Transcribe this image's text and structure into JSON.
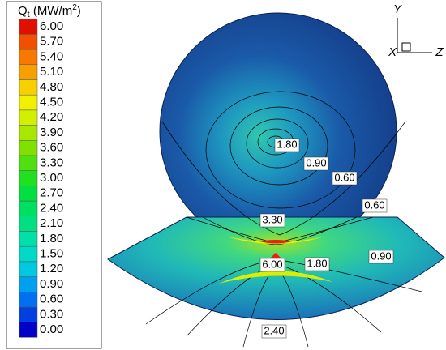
{
  "chart_data": {
    "type": "contour",
    "title": [
      "Q",
      "t",
      " (MW/m",
      "2",
      ")"
    ],
    "colorbar": {
      "ticks": [
        {
          "value": 0,
          "label": "0.00"
        },
        {
          "value": 0.3,
          "label": "0.30"
        },
        {
          "value": 0.6,
          "label": "0.60"
        },
        {
          "value": 0.9,
          "label": "0.90"
        },
        {
          "value": 1.2,
          "label": "1.20"
        },
        {
          "value": 1.5,
          "label": "1.50"
        },
        {
          "value": 1.8,
          "label": "1.80"
        },
        {
          "value": 2.1,
          "label": "2.10"
        },
        {
          "value": 2.4,
          "label": "2.40"
        },
        {
          "value": 2.7,
          "label": "2.70"
        },
        {
          "value": 3,
          "label": "3.00"
        },
        {
          "value": 3.3,
          "label": "3.30"
        },
        {
          "value": 3.6,
          "label": "3.60"
        },
        {
          "value": 3.9,
          "label": "3.90"
        },
        {
          "value": 4.2,
          "label": "4.20"
        },
        {
          "value": 4.5,
          "label": "4.50"
        },
        {
          "value": 4.8,
          "label": "4.80"
        },
        {
          "value": 5.1,
          "label": "5.10"
        },
        {
          "value": 5.4,
          "label": "5.40"
        },
        {
          "value": 5.7,
          "label": "5.70"
        },
        {
          "value": 6,
          "label": "6.00"
        }
      ],
      "colors": [
        "#0000c8",
        "#0040e0",
        "#0070f0",
        "#00a0f0",
        "#00c8e0",
        "#00d8c8",
        "#00e0a8",
        "#00e080",
        "#00e060",
        "#00e040",
        "#20e020",
        "#50e010",
        "#80e000",
        "#a8e800",
        "#d0f000",
        "#f0f000",
        "#f8d000",
        "#f8a000",
        "#f87800",
        "#f05000",
        "#e01000"
      ]
    },
    "contour_labels": [
      {
        "value": 1.8,
        "label": "1.80"
      },
      {
        "value": 0.9,
        "label": "0.90"
      },
      {
        "value": 0.6,
        "label": "0.60"
      },
      {
        "value": 0.6,
        "label": "0.60"
      },
      {
        "value": 3.3,
        "label": "3.30"
      },
      {
        "value": 6,
        "label": "6.00"
      },
      {
        "value": 1.8,
        "label": "1.80"
      },
      {
        "value": 0.9,
        "label": "0.90"
      },
      {
        "value": 2.4,
        "label": "2.40"
      }
    ],
    "axes_triad": [
      "Y",
      "X",
      "Z"
    ]
  }
}
